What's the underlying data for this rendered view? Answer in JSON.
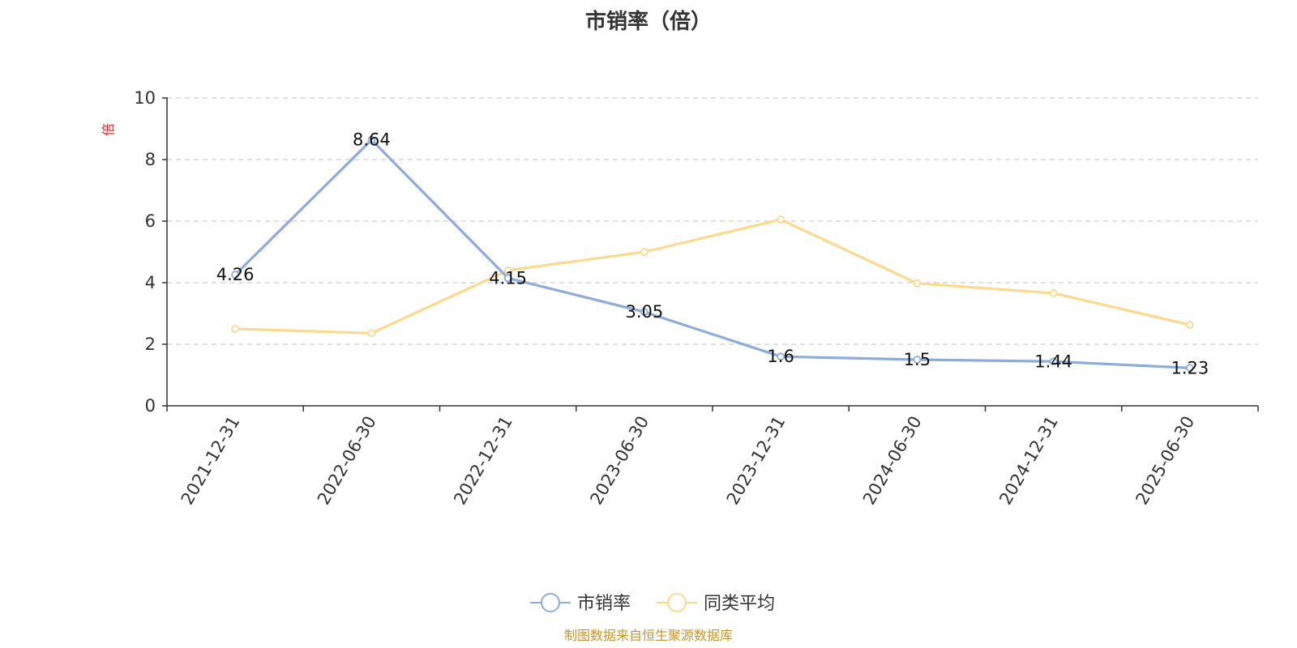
{
  "chart_data": {
    "type": "line",
    "title": "市销率（倍）",
    "ylabel": "倍",
    "ylim": [
      0,
      10
    ],
    "yticks": [
      0,
      2,
      4,
      6,
      8,
      10
    ],
    "grid": true,
    "legend_position": "bottom",
    "categories": [
      "2021-12-31",
      "2022-06-30",
      "2022-12-31",
      "2023-06-30",
      "2023-12-31",
      "2024-06-30",
      "2024-12-31",
      "2025-06-30"
    ],
    "series": [
      {
        "name": "市销率",
        "color": "#8eacd9",
        "values": [
          4.26,
          8.64,
          4.15,
          3.05,
          1.6,
          1.5,
          1.44,
          1.23
        ],
        "labels": [
          "4.26",
          "8.64",
          "4.15",
          "3.05",
          "1.6",
          "1.5",
          "1.44",
          "1.23"
        ]
      },
      {
        "name": "同类平均",
        "color": "#fbd98f",
        "values": [
          2.5,
          2.36,
          4.4,
          5.0,
          6.05,
          3.98,
          3.66,
          2.63
        ]
      }
    ],
    "unit_color": "#e0252b"
  },
  "source": {
    "text": "制图数据来自恒生聚源数据库",
    "color": "#c8962a"
  }
}
